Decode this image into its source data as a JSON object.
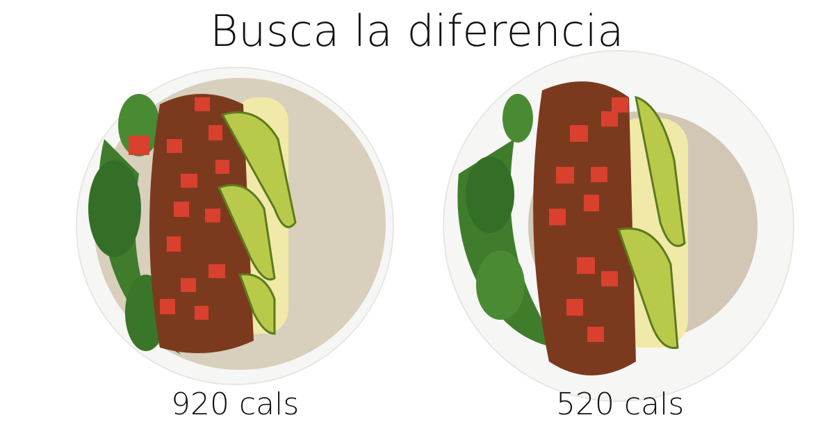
{
  "title": "Busca la diferencia",
  "left_plate": {
    "label": "920 cals"
  },
  "right_plate": {
    "label": "520 cals"
  },
  "colors": {
    "plate": "#f7f7f5",
    "tortilla": "#d8cfbd",
    "filling": "#7b3a1e",
    "tomato": "#d9402e",
    "avocado": "#b9c94a",
    "cheese": "#f1e9a8",
    "greens": "#3f7d2c"
  }
}
